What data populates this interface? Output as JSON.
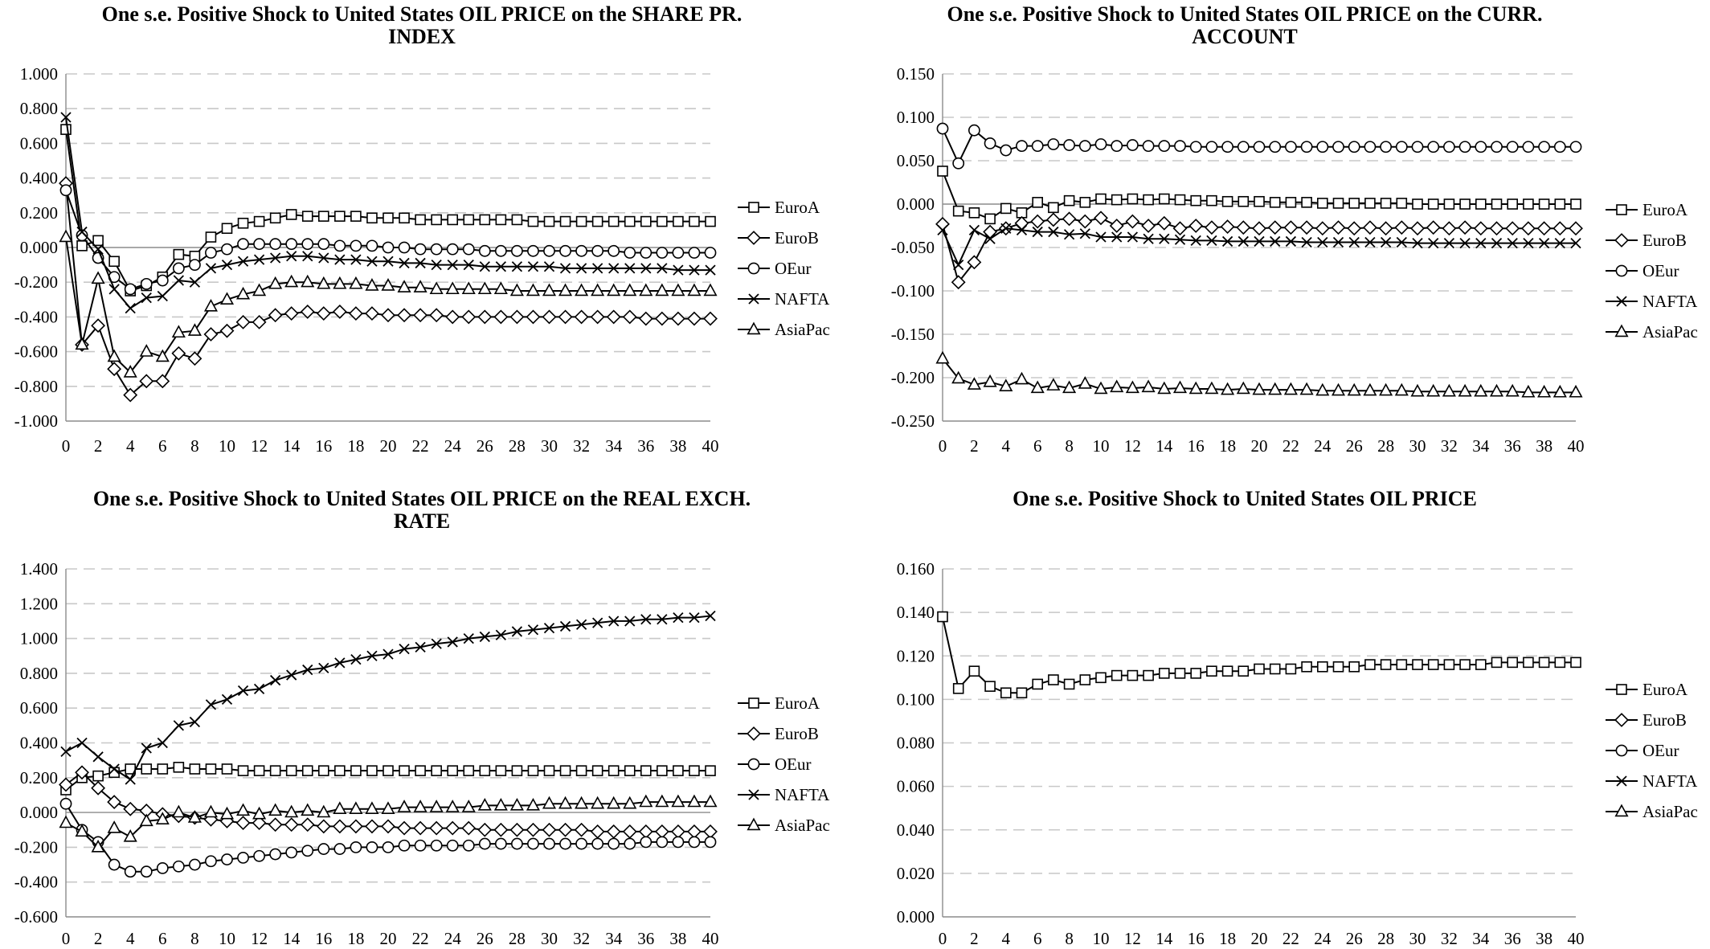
{
  "legend_labels": [
    "EuroA",
    "EuroB",
    "OEur",
    "NAFTA",
    "AsiaPac"
  ],
  "chart_data": [
    {
      "type": "line",
      "title": [
        "One s.e. Positive Shock to United States OIL PRICE on the SHARE PR.",
        "INDEX"
      ],
      "xlabel": "",
      "ylabel": "",
      "x": [
        0,
        1,
        2,
        3,
        4,
        5,
        6,
        7,
        8,
        9,
        10,
        11,
        12,
        13,
        14,
        15,
        16,
        17,
        18,
        19,
        20,
        21,
        22,
        23,
        24,
        25,
        26,
        27,
        28,
        29,
        30,
        31,
        32,
        33,
        34,
        35,
        36,
        37,
        38,
        39,
        40
      ],
      "x_ticks": [
        0,
        2,
        4,
        6,
        8,
        10,
        12,
        14,
        16,
        18,
        20,
        22,
        24,
        26,
        28,
        30,
        32,
        34,
        36,
        38,
        40
      ],
      "ylim": [
        -1.0,
        1.0
      ],
      "y_ticks": [
        "1.000",
        "0.800",
        "0.600",
        "0.400",
        "0.200",
        "0.000",
        "-0.200",
        "-0.400",
        "-0.600",
        "-0.800",
        "-1.000"
      ],
      "grid": true,
      "legend": "right",
      "series": [
        {
          "name": "EuroA",
          "marker": "square",
          "values": [
            0.68,
            0.01,
            0.04,
            -0.08,
            -0.25,
            -0.22,
            -0.17,
            -0.04,
            -0.05,
            0.06,
            0.11,
            0.14,
            0.15,
            0.17,
            0.19,
            0.18,
            0.18,
            0.18,
            0.18,
            0.17,
            0.17,
            0.17,
            0.16,
            0.16,
            0.16,
            0.16,
            0.16,
            0.16,
            0.16,
            0.15,
            0.15,
            0.15,
            0.15,
            0.15,
            0.15,
            0.15,
            0.15,
            0.15,
            0.15,
            0.15,
            0.15
          ]
        },
        {
          "name": "EuroB",
          "marker": "diamond",
          "values": [
            0.37,
            -0.56,
            -0.45,
            -0.7,
            -0.85,
            -0.77,
            -0.77,
            -0.61,
            -0.64,
            -0.5,
            -0.48,
            -0.43,
            -0.43,
            -0.39,
            -0.38,
            -0.37,
            -0.38,
            -0.37,
            -0.38,
            -0.38,
            -0.39,
            -0.39,
            -0.39,
            -0.39,
            -0.4,
            -0.4,
            -0.4,
            -0.4,
            -0.4,
            -0.4,
            -0.4,
            -0.4,
            -0.4,
            -0.4,
            -0.4,
            -0.4,
            -0.41,
            -0.41,
            -0.41,
            -0.41,
            -0.41
          ]
        },
        {
          "name": "OEur",
          "marker": "circle",
          "values": [
            0.33,
            0.07,
            -0.06,
            -0.17,
            -0.24,
            -0.21,
            -0.19,
            -0.12,
            -0.1,
            -0.03,
            -0.01,
            0.02,
            0.02,
            0.02,
            0.02,
            0.02,
            0.02,
            0.01,
            0.01,
            0.01,
            0.0,
            0.0,
            -0.01,
            -0.01,
            -0.01,
            -0.01,
            -0.02,
            -0.02,
            -0.02,
            -0.02,
            -0.02,
            -0.02,
            -0.02,
            -0.02,
            -0.02,
            -0.03,
            -0.03,
            -0.03,
            -0.03,
            -0.03,
            -0.03
          ]
        },
        {
          "name": "NAFTA",
          "marker": "x",
          "values": [
            0.75,
            0.09,
            -0.01,
            -0.24,
            -0.35,
            -0.29,
            -0.28,
            -0.19,
            -0.2,
            -0.12,
            -0.1,
            -0.08,
            -0.07,
            -0.06,
            -0.05,
            -0.05,
            -0.06,
            -0.07,
            -0.07,
            -0.08,
            -0.08,
            -0.09,
            -0.09,
            -0.1,
            -0.1,
            -0.1,
            -0.11,
            -0.11,
            -0.11,
            -0.11,
            -0.11,
            -0.12,
            -0.12,
            -0.12,
            -0.12,
            -0.12,
            -0.12,
            -0.12,
            -0.13,
            -0.13,
            -0.13
          ]
        },
        {
          "name": "AsiaPac",
          "marker": "triangle",
          "values": [
            0.06,
            -0.56,
            -0.18,
            -0.63,
            -0.72,
            -0.6,
            -0.63,
            -0.49,
            -0.48,
            -0.34,
            -0.3,
            -0.27,
            -0.25,
            -0.21,
            -0.2,
            -0.2,
            -0.21,
            -0.21,
            -0.21,
            -0.22,
            -0.22,
            -0.23,
            -0.23,
            -0.24,
            -0.24,
            -0.24,
            -0.24,
            -0.24,
            -0.25,
            -0.25,
            -0.25,
            -0.25,
            -0.25,
            -0.25,
            -0.25,
            -0.25,
            -0.25,
            -0.25,
            -0.25,
            -0.25,
            -0.25
          ]
        }
      ]
    },
    {
      "type": "line",
      "title": [
        "One s.e. Positive Shock to United States OIL PRICE on the CURR.",
        "ACCOUNT"
      ],
      "xlabel": "",
      "ylabel": "",
      "x": [
        0,
        1,
        2,
        3,
        4,
        5,
        6,
        7,
        8,
        9,
        10,
        11,
        12,
        13,
        14,
        15,
        16,
        17,
        18,
        19,
        20,
        21,
        22,
        23,
        24,
        25,
        26,
        27,
        28,
        29,
        30,
        31,
        32,
        33,
        34,
        35,
        36,
        37,
        38,
        39,
        40
      ],
      "x_ticks": [
        0,
        2,
        4,
        6,
        8,
        10,
        12,
        14,
        16,
        18,
        20,
        22,
        24,
        26,
        28,
        30,
        32,
        34,
        36,
        38,
        40
      ],
      "ylim": [
        -0.25,
        0.15
      ],
      "y_ticks": [
        "0.150",
        "0.100",
        "0.050",
        "0.000",
        "-0.050",
        "-0.100",
        "-0.150",
        "-0.200",
        "-0.250"
      ],
      "grid": true,
      "legend": "right",
      "series": [
        {
          "name": "EuroA",
          "marker": "square",
          "values": [
            0.038,
            -0.008,
            -0.01,
            -0.017,
            -0.005,
            -0.01,
            0.002,
            -0.004,
            0.004,
            0.002,
            0.006,
            0.005,
            0.006,
            0.005,
            0.006,
            0.005,
            0.004,
            0.004,
            0.003,
            0.003,
            0.003,
            0.002,
            0.002,
            0.002,
            0.001,
            0.001,
            0.001,
            0.001,
            0.001,
            0.001,
            0.0,
            0.0,
            0.0,
            0.0,
            0.0,
            0.0,
            0.0,
            0.0,
            0.0,
            0.0,
            0.0
          ]
        },
        {
          "name": "EuroB",
          "marker": "diamond",
          "values": [
            -0.023,
            -0.09,
            -0.067,
            -0.032,
            -0.028,
            -0.022,
            -0.02,
            -0.018,
            -0.017,
            -0.02,
            -0.016,
            -0.025,
            -0.02,
            -0.025,
            -0.022,
            -0.028,
            -0.025,
            -0.027,
            -0.026,
            -0.027,
            -0.028,
            -0.027,
            -0.027,
            -0.027,
            -0.028,
            -0.027,
            -0.028,
            -0.027,
            -0.028,
            -0.027,
            -0.028,
            -0.027,
            -0.028,
            -0.027,
            -0.028,
            -0.028,
            -0.028,
            -0.028,
            -0.028,
            -0.028,
            -0.028
          ]
        },
        {
          "name": "OEur",
          "marker": "circle",
          "values": [
            0.087,
            0.047,
            0.085,
            0.07,
            0.062,
            0.067,
            0.067,
            0.069,
            0.068,
            0.067,
            0.069,
            0.067,
            0.068,
            0.067,
            0.067,
            0.067,
            0.066,
            0.066,
            0.066,
            0.066,
            0.066,
            0.066,
            0.066,
            0.066,
            0.066,
            0.066,
            0.066,
            0.066,
            0.066,
            0.066,
            0.066,
            0.066,
            0.066,
            0.066,
            0.066,
            0.066,
            0.066,
            0.066,
            0.066,
            0.066,
            0.066
          ]
        },
        {
          "name": "NAFTA",
          "marker": "x",
          "values": [
            -0.03,
            -0.07,
            -0.03,
            -0.04,
            -0.028,
            -0.03,
            -0.032,
            -0.032,
            -0.035,
            -0.034,
            -0.038,
            -0.038,
            -0.038,
            -0.04,
            -0.04,
            -0.041,
            -0.042,
            -0.042,
            -0.043,
            -0.043,
            -0.043,
            -0.043,
            -0.043,
            -0.044,
            -0.044,
            -0.044,
            -0.044,
            -0.044,
            -0.044,
            -0.044,
            -0.045,
            -0.045,
            -0.045,
            -0.045,
            -0.045,
            -0.045,
            -0.045,
            -0.045,
            -0.045,
            -0.045,
            -0.045
          ]
        },
        {
          "name": "AsiaPac",
          "marker": "triangle",
          "values": [
            -0.178,
            -0.201,
            -0.208,
            -0.205,
            -0.21,
            -0.202,
            -0.212,
            -0.209,
            -0.212,
            -0.207,
            -0.213,
            -0.211,
            -0.212,
            -0.211,
            -0.213,
            -0.212,
            -0.213,
            -0.213,
            -0.214,
            -0.213,
            -0.214,
            -0.214,
            -0.214,
            -0.214,
            -0.215,
            -0.215,
            -0.215,
            -0.215,
            -0.215,
            -0.215,
            -0.216,
            -0.216,
            -0.216,
            -0.216,
            -0.216,
            -0.216,
            -0.216,
            -0.217,
            -0.217,
            -0.217,
            -0.217
          ]
        }
      ]
    },
    {
      "type": "line",
      "title": [
        "One s.e. Positive Shock to United States OIL PRICE on the REAL EXCH.",
        "RATE"
      ],
      "xlabel": "",
      "ylabel": "",
      "x": [
        0,
        1,
        2,
        3,
        4,
        5,
        6,
        7,
        8,
        9,
        10,
        11,
        12,
        13,
        14,
        15,
        16,
        17,
        18,
        19,
        20,
        21,
        22,
        23,
        24,
        25,
        26,
        27,
        28,
        29,
        30,
        31,
        32,
        33,
        34,
        35,
        36,
        37,
        38,
        39,
        40
      ],
      "x_ticks": [
        0,
        2,
        4,
        6,
        8,
        10,
        12,
        14,
        16,
        18,
        20,
        22,
        24,
        26,
        28,
        30,
        32,
        34,
        36,
        38,
        40
      ],
      "ylim": [
        -0.6,
        1.4
      ],
      "y_ticks": [
        "1.400",
        "1.200",
        "1.000",
        "0.800",
        "0.600",
        "0.400",
        "0.200",
        "0.000",
        "-0.200",
        "-0.400",
        "-0.600"
      ],
      "grid": true,
      "legend": "right",
      "series": [
        {
          "name": "EuroA",
          "marker": "square",
          "values": [
            0.13,
            0.2,
            0.21,
            0.23,
            0.25,
            0.25,
            0.25,
            0.26,
            0.25,
            0.25,
            0.25,
            0.24,
            0.24,
            0.24,
            0.24,
            0.24,
            0.24,
            0.24,
            0.24,
            0.24,
            0.24,
            0.24,
            0.24,
            0.24,
            0.24,
            0.24,
            0.24,
            0.24,
            0.24,
            0.24,
            0.24,
            0.24,
            0.24,
            0.24,
            0.24,
            0.24,
            0.24,
            0.24,
            0.24,
            0.24,
            0.24
          ]
        },
        {
          "name": "EuroB",
          "marker": "diamond",
          "values": [
            0.16,
            0.23,
            0.14,
            0.06,
            0.02,
            0.01,
            -0.01,
            -0.02,
            -0.03,
            -0.04,
            -0.05,
            -0.06,
            -0.06,
            -0.07,
            -0.07,
            -0.07,
            -0.08,
            -0.08,
            -0.08,
            -0.08,
            -0.08,
            -0.09,
            -0.09,
            -0.09,
            -0.09,
            -0.09,
            -0.1,
            -0.1,
            -0.1,
            -0.1,
            -0.1,
            -0.1,
            -0.1,
            -0.11,
            -0.11,
            -0.11,
            -0.11,
            -0.11,
            -0.11,
            -0.11,
            -0.11
          ]
        },
        {
          "name": "OEur",
          "marker": "circle",
          "values": [
            0.05,
            -0.1,
            -0.17,
            -0.3,
            -0.34,
            -0.34,
            -0.32,
            -0.31,
            -0.3,
            -0.28,
            -0.27,
            -0.26,
            -0.25,
            -0.24,
            -0.23,
            -0.22,
            -0.21,
            -0.21,
            -0.2,
            -0.2,
            -0.2,
            -0.19,
            -0.19,
            -0.19,
            -0.19,
            -0.19,
            -0.18,
            -0.18,
            -0.18,
            -0.18,
            -0.18,
            -0.18,
            -0.18,
            -0.18,
            -0.18,
            -0.18,
            -0.17,
            -0.17,
            -0.17,
            -0.17,
            -0.17
          ]
        },
        {
          "name": "NAFTA",
          "marker": "x",
          "values": [
            0.35,
            0.4,
            0.32,
            0.25,
            0.19,
            0.37,
            0.4,
            0.5,
            0.52,
            0.62,
            0.65,
            0.7,
            0.71,
            0.76,
            0.79,
            0.82,
            0.83,
            0.86,
            0.88,
            0.9,
            0.91,
            0.94,
            0.95,
            0.97,
            0.98,
            1.0,
            1.01,
            1.02,
            1.04,
            1.05,
            1.06,
            1.07,
            1.08,
            1.09,
            1.1,
            1.1,
            1.11,
            1.11,
            1.12,
            1.12,
            1.13
          ]
        },
        {
          "name": "AsiaPac",
          "marker": "triangle",
          "values": [
            -0.06,
            -0.11,
            -0.2,
            -0.09,
            -0.14,
            -0.05,
            -0.04,
            0.0,
            -0.03,
            0.0,
            -0.01,
            0.01,
            -0.01,
            0.01,
            0.0,
            0.01,
            0.0,
            0.02,
            0.02,
            0.02,
            0.02,
            0.03,
            0.03,
            0.03,
            0.03,
            0.03,
            0.04,
            0.04,
            0.04,
            0.04,
            0.05,
            0.05,
            0.05,
            0.05,
            0.05,
            0.05,
            0.06,
            0.06,
            0.06,
            0.06,
            0.06
          ]
        }
      ]
    },
    {
      "type": "line",
      "title": [
        "One s.e. Positive Shock to United States OIL PRICE"
      ],
      "xlabel": "",
      "ylabel": "",
      "x": [
        0,
        1,
        2,
        3,
        4,
        5,
        6,
        7,
        8,
        9,
        10,
        11,
        12,
        13,
        14,
        15,
        16,
        17,
        18,
        19,
        20,
        21,
        22,
        23,
        24,
        25,
        26,
        27,
        28,
        29,
        30,
        31,
        32,
        33,
        34,
        35,
        36,
        37,
        38,
        39,
        40
      ],
      "x_ticks": [
        0,
        2,
        4,
        6,
        8,
        10,
        12,
        14,
        16,
        18,
        20,
        22,
        24,
        26,
        28,
        30,
        32,
        34,
        36,
        38,
        40
      ],
      "ylim": [
        0.0,
        0.16
      ],
      "y_ticks": [
        "0.160",
        "0.140",
        "0.120",
        "0.100",
        "0.080",
        "0.060",
        "0.040",
        "0.020",
        "0.000"
      ],
      "grid": true,
      "legend": "right",
      "series": [
        {
          "name": "EuroA",
          "marker": "square",
          "values": [
            0.138,
            0.105,
            0.113,
            0.106,
            0.103,
            0.103,
            0.107,
            0.109,
            0.107,
            0.109,
            0.11,
            0.111,
            0.111,
            0.111,
            0.112,
            0.112,
            0.112,
            0.113,
            0.113,
            0.113,
            0.114,
            0.114,
            0.114,
            0.115,
            0.115,
            0.115,
            0.115,
            0.116,
            0.116,
            0.116,
            0.116,
            0.116,
            0.116,
            0.116,
            0.116,
            0.117,
            0.117,
            0.117,
            0.117,
            0.117,
            0.117
          ]
        }
      ]
    }
  ]
}
